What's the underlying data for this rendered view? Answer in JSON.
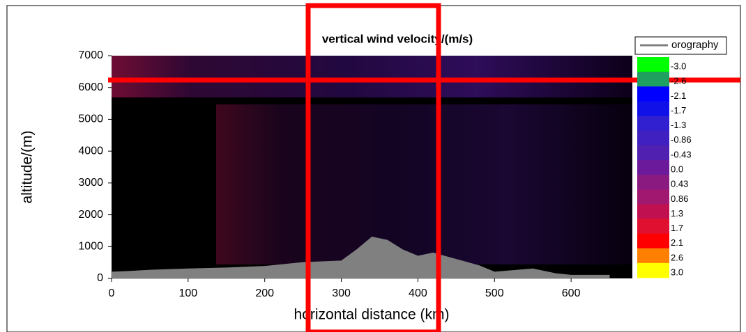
{
  "chart_data": {
    "type": "area",
    "title": "vertical wind velocity/(m/s)",
    "x_label": "horizontal distance (km)",
    "y_label": "altitude/(m)",
    "xlim": [
      0,
      680
    ],
    "ylim": [
      0,
      7000
    ],
    "xticks": [
      0,
      100,
      200,
      300,
      400,
      500,
      600
    ],
    "yticks": [
      0,
      1000,
      2000,
      3000,
      4000,
      5000,
      6000,
      7000
    ],
    "series": [
      {
        "name": "orography",
        "color": "#808080",
        "x": [
          0,
          20,
          50,
          100,
          150,
          200,
          250,
          300,
          320,
          340,
          360,
          380,
          400,
          420,
          450,
          480,
          500,
          550,
          580,
          600,
          650
        ],
        "values": [
          200,
          220,
          260,
          300,
          330,
          380,
          500,
          550,
          900,
          1300,
          1200,
          900,
          700,
          800,
          600,
          400,
          200,
          300,
          150,
          100,
          100
        ]
      }
    ],
    "colorbar": {
      "colors": [
        "#00ff00",
        "#20a060",
        "#0000ff",
        "#1010e8",
        "#3020d0",
        "#4020c0",
        "#5020b0",
        "#6a1a9a",
        "#8a1a80",
        "#a01870",
        "#c01050",
        "#e01030",
        "#ff0000",
        "#ff8000",
        "#ffff00"
      ],
      "ticks": [
        {
          "value": -3,
          "label": "-3.0"
        },
        -2.6,
        -2.1,
        -1.7,
        -1.3,
        -0.86,
        -0.43,
        {
          "value": 0,
          "label": "0.0"
        },
        0.43,
        0.86,
        1.3,
        1.7,
        2.1,
        2.6,
        {
          "value": 3,
          "label": "3.0"
        }
      ]
    }
  }
}
